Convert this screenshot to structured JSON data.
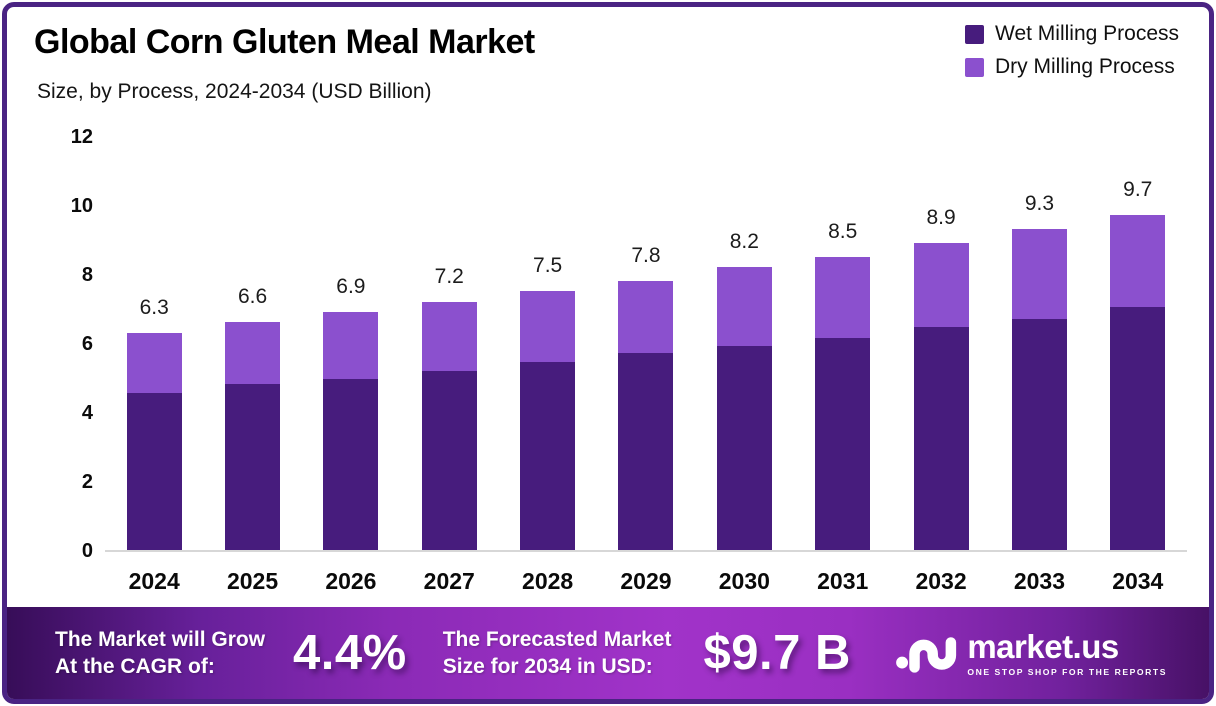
{
  "header": {
    "title": "Global Corn Gluten Meal Market",
    "subtitle": "Size, by Process, 2024-2034 (USD Billion)"
  },
  "legend": {
    "items": [
      {
        "label": "Wet Milling Process",
        "color": "#471c7d"
      },
      {
        "label": "Dry Milling Process",
        "color": "#8b50ce"
      }
    ]
  },
  "chart_data": {
    "type": "bar",
    "stacked": true,
    "title": "Global Corn Gluten Meal Market",
    "subtitle": "Size, by Process, 2024-2034 (USD Billion)",
    "categories": [
      "2024",
      "2025",
      "2026",
      "2027",
      "2028",
      "2029",
      "2030",
      "2031",
      "2032",
      "2033",
      "2034"
    ],
    "series": [
      {
        "name": "Wet Milling Process",
        "color": "#471c7d",
        "values": [
          4.55,
          4.8,
          4.95,
          5.2,
          5.45,
          5.7,
          5.9,
          6.15,
          6.45,
          6.7,
          7.05
        ]
      },
      {
        "name": "Dry Milling Process",
        "color": "#8b50ce",
        "values": [
          1.75,
          1.8,
          1.95,
          2.0,
          2.05,
          2.1,
          2.3,
          2.35,
          2.45,
          2.6,
          2.65
        ]
      }
    ],
    "totals": [
      6.3,
      6.6,
      6.9,
      7.2,
      7.5,
      7.8,
      8.2,
      8.5,
      8.9,
      9.3,
      9.7
    ],
    "total_labels": [
      "6.3",
      "6.6",
      "6.9",
      "7.2",
      "7.5",
      "7.8",
      "8.2",
      "8.5",
      "8.9",
      "9.3",
      "9.7"
    ],
    "yticks": [
      0,
      2,
      4,
      6,
      8,
      10,
      12
    ],
    "ylim": [
      0,
      12
    ],
    "grid": false,
    "legend_position": "top-right",
    "xlabel": "",
    "ylabel": ""
  },
  "banner": {
    "cagr_line1": "The Market will Grow",
    "cagr_line2": "At the CAGR of:",
    "cagr_value": "4.4%",
    "forecast_line1": "The Forecasted Market",
    "forecast_line2": "Size for 2034 in USD:",
    "forecast_value": "$9.7 B",
    "brand": "market.us",
    "tagline": "ONE STOP SHOP FOR THE REPORTS"
  },
  "colors": {
    "border": "#4a2383",
    "wet": "#471c7d",
    "dry": "#8b50ce",
    "baseline": "#d7d7d7"
  }
}
